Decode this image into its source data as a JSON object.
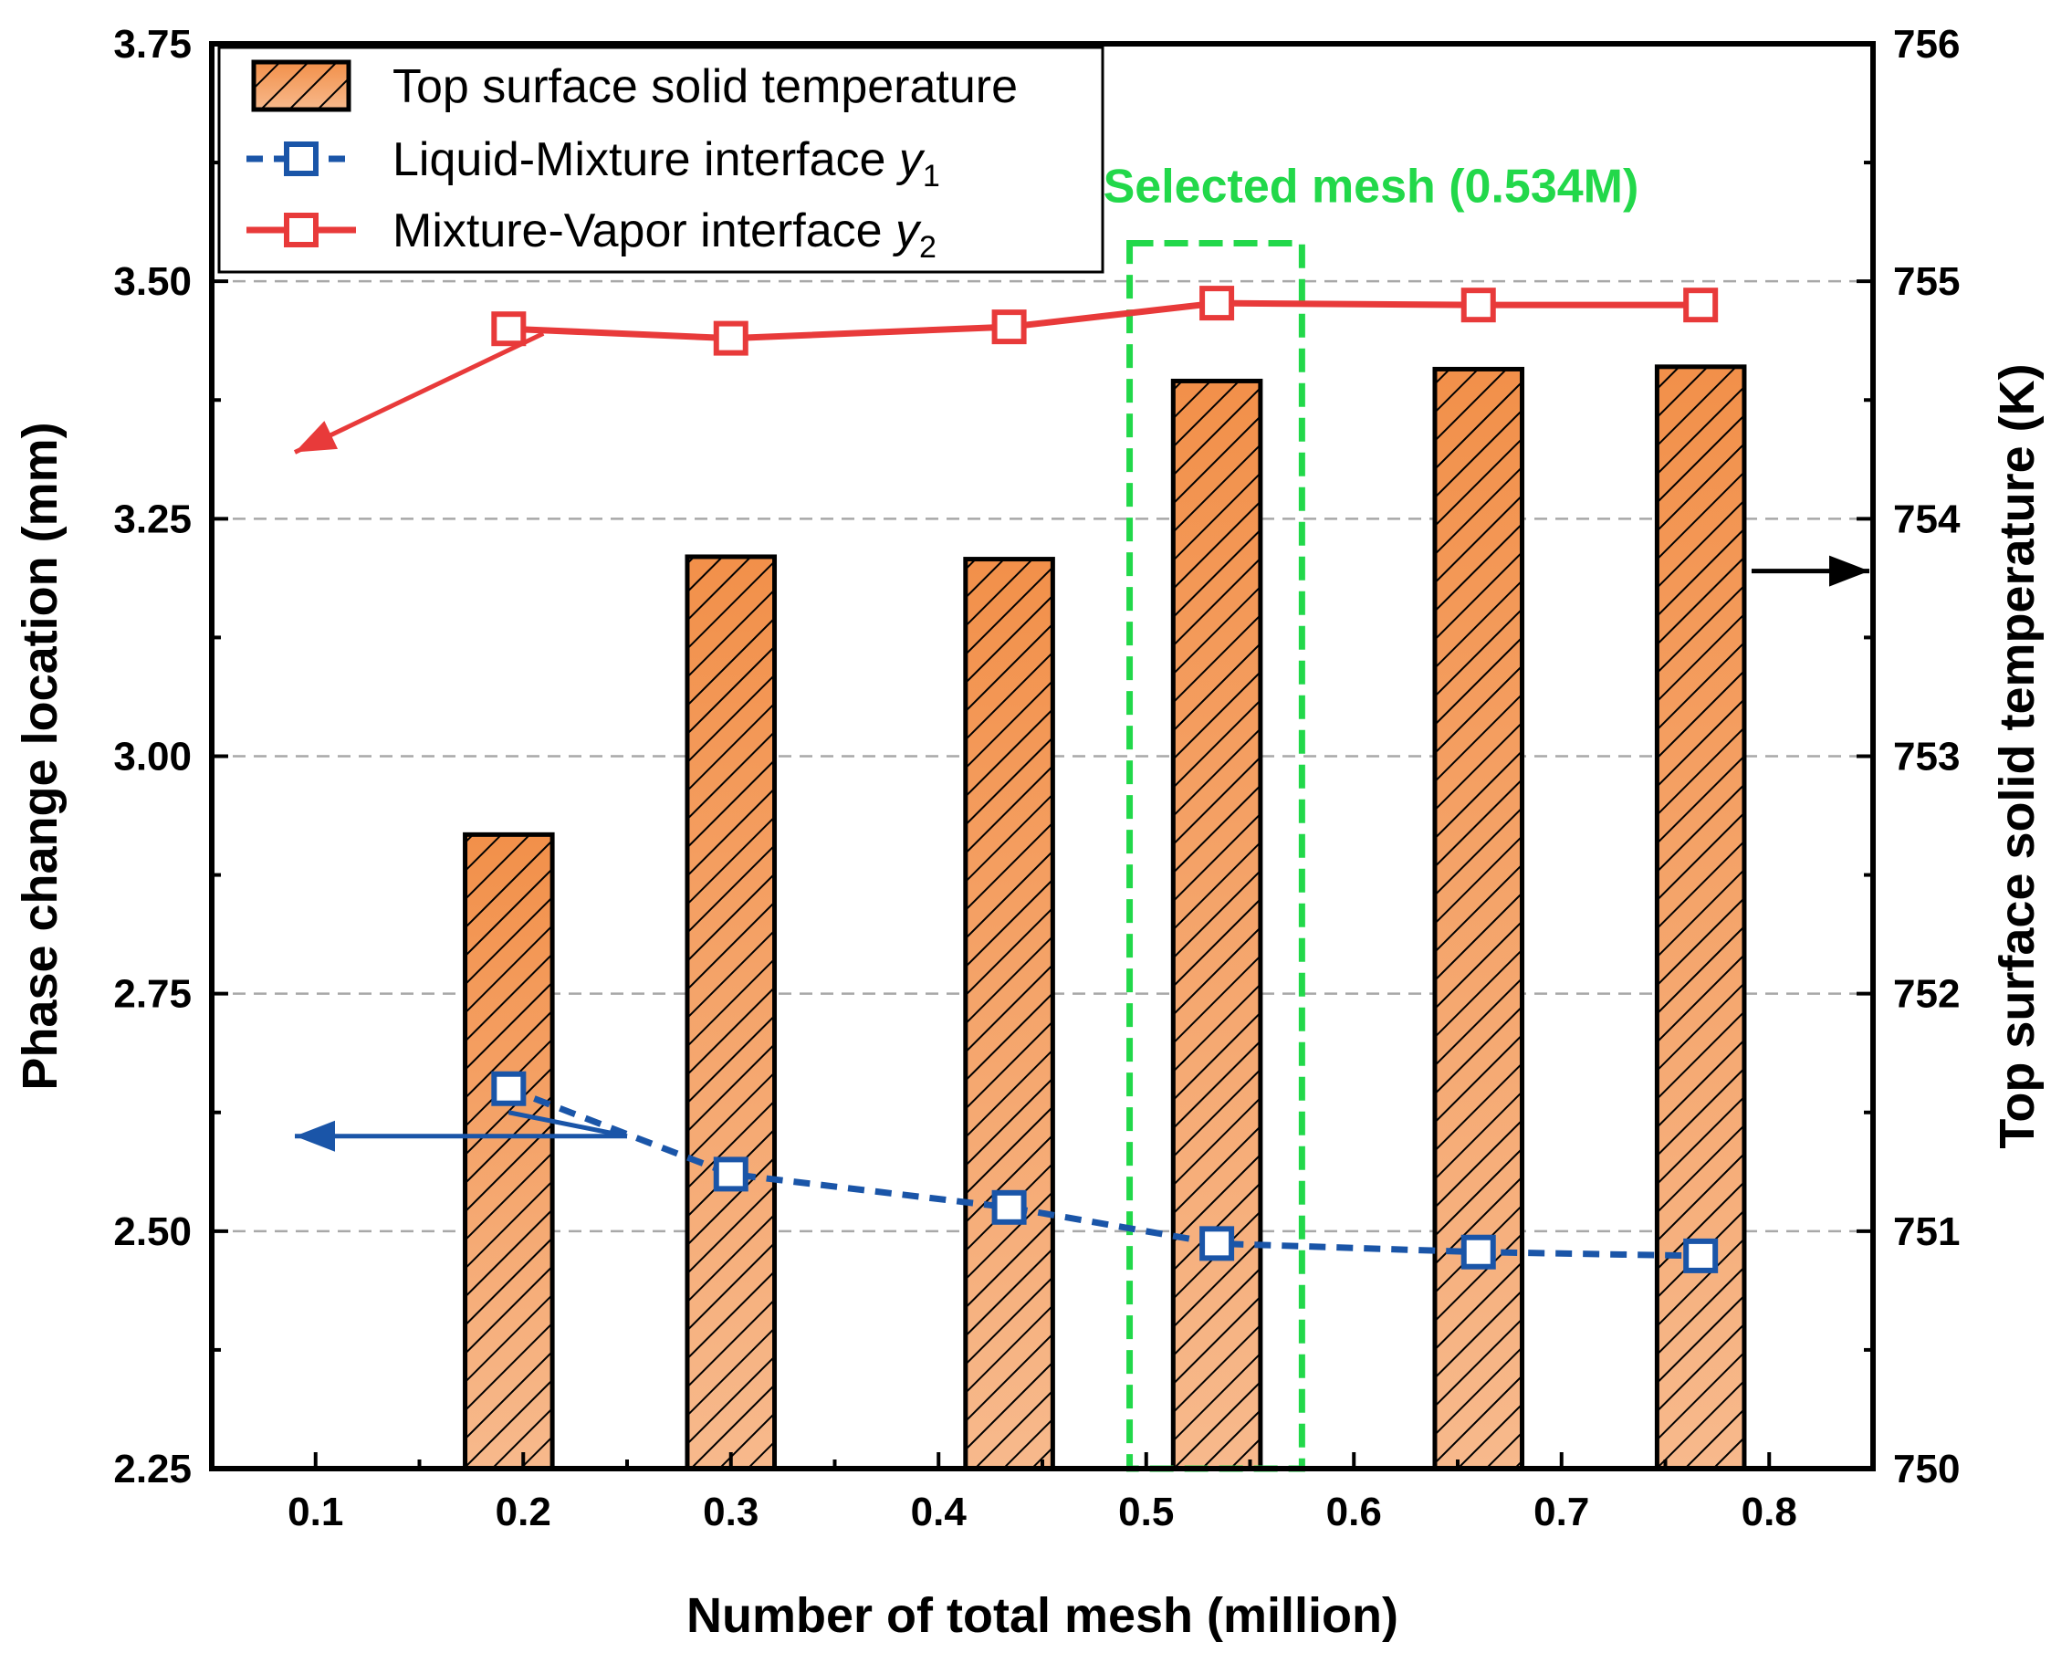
{
  "chart_data": {
    "type": "bar+line",
    "xlabel": "Number of total mesh (million)",
    "ylabel_left": "Phase change location (mm)",
    "ylabel_right": "Top surface solid temperature (K)",
    "xlim": [
      0.05,
      0.85
    ],
    "ylim_left": [
      2.25,
      3.75
    ],
    "ylim_right": [
      750,
      756
    ],
    "xticks": [
      "0.1",
      "0.2",
      "0.3",
      "0.4",
      "0.5",
      "0.6",
      "0.7",
      "0.8"
    ],
    "yticks_left": [
      "2.25",
      "2.50",
      "2.75",
      "3.00",
      "3.25",
      "3.50",
      "3.75"
    ],
    "yticks_right": [
      "750",
      "751",
      "752",
      "753",
      "754",
      "755",
      "756"
    ],
    "grid": "horizontal dashed",
    "bar_series": {
      "name": "Top surface solid temperature",
      "axis": "right",
      "x": [
        0.193,
        0.3,
        0.434,
        0.534,
        0.66,
        0.767
      ],
      "values": [
        752.67,
        753.84,
        753.83,
        754.58,
        754.63,
        754.64
      ],
      "color": "#f4a36b"
    },
    "line_series": [
      {
        "name": "Liquid-Mixture interface",
        "subscript": "1",
        "axis": "left",
        "x": [
          0.193,
          0.3,
          0.434,
          0.534,
          0.66,
          0.767
        ],
        "values": [
          2.65,
          2.56,
          2.525,
          2.487,
          2.478,
          2.474
        ],
        "color": "#1a55a8",
        "style": "dashed"
      },
      {
        "name": "Mixture-Vapor interface",
        "subscript": "2",
        "axis": "left",
        "x": [
          0.193,
          0.3,
          0.434,
          0.534,
          0.66,
          0.767
        ],
        "values": [
          3.45,
          3.44,
          3.452,
          3.477,
          3.475,
          3.475
        ],
        "color": "#e83a3a",
        "style": "solid"
      }
    ],
    "annotations": {
      "selected_label": "Selected mesh (0.534M)",
      "selected_x_range": [
        0.492,
        0.575
      ],
      "selected_color": "#22d84a"
    },
    "legend_placement": "top-left"
  }
}
